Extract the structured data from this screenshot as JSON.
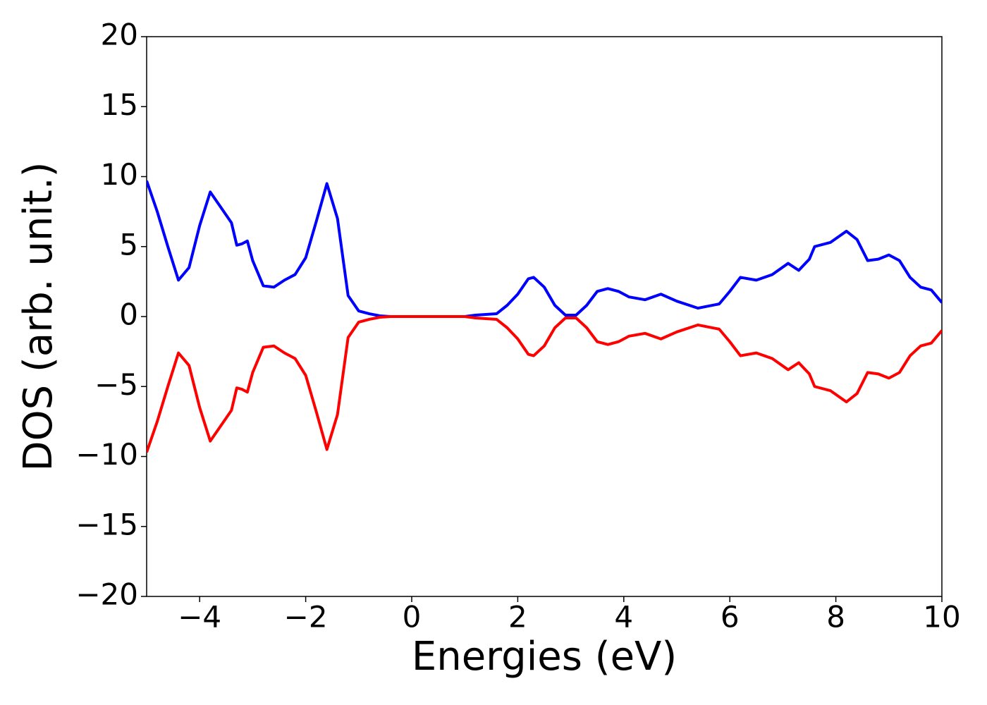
{
  "chart_data": {
    "type": "line",
    "x_label": "Energies (eV)",
    "y_label": "DOS (arb. unit.)",
    "x": [
      -5,
      -4.8,
      -4.6,
      -4.4,
      -4.2,
      -4.0,
      -3.8,
      -3.6,
      -3.4,
      -3.3,
      -3.2,
      -3.1,
      -3.0,
      -2.8,
      -2.6,
      -2.4,
      -2.2,
      -2.0,
      -1.8,
      -1.6,
      -1.4,
      -1.2,
      -1.0,
      -0.8,
      -0.6,
      -0.4,
      0,
      0.5,
      1.0,
      1.2,
      1.6,
      1.8,
      2.0,
      2.2,
      2.3,
      2.5,
      2.7,
      2.9,
      3.1,
      3.3,
      3.5,
      3.7,
      3.9,
      4.1,
      4.4,
      4.7,
      5.0,
      5.4,
      5.8,
      6.0,
      6.2,
      6.5,
      6.8,
      7.1,
      7.3,
      7.5,
      7.6,
      7.9,
      8.2,
      8.4,
      8.6,
      8.8,
      9.0,
      9.2,
      9.4,
      9.6,
      9.8,
      10.0
    ],
    "series": [
      {
        "color": "#0000ff",
        "values": [
          9.7,
          7.5,
          5.0,
          2.6,
          3.5,
          6.5,
          8.9,
          7.8,
          6.7,
          5.1,
          5.2,
          5.4,
          4.0,
          2.2,
          2.1,
          2.6,
          3.0,
          4.2,
          6.8,
          9.5,
          7.0,
          1.5,
          0.4,
          0.2,
          0.05,
          0,
          0,
          0,
          0,
          0.1,
          0.2,
          0.8,
          1.6,
          2.7,
          2.8,
          2.1,
          0.8,
          0.1,
          0.1,
          0.8,
          1.8,
          2.0,
          1.8,
          1.4,
          1.2,
          1.6,
          1.1,
          0.6,
          0.9,
          1.8,
          2.8,
          2.6,
          3.0,
          3.8,
          3.3,
          4.1,
          5.0,
          5.3,
          6.1,
          5.5,
          4.0,
          4.1,
          4.4,
          4.0,
          2.8,
          2.1,
          1.9,
          1.0
        ]
      },
      {
        "color": "#ff0000",
        "values": [
          -9.7,
          -7.5,
          -5.0,
          -2.6,
          -3.5,
          -6.5,
          -8.9,
          -7.8,
          -6.7,
          -5.1,
          -5.2,
          -5.4,
          -4.0,
          -2.2,
          -2.1,
          -2.6,
          -3.0,
          -4.2,
          -6.8,
          -9.5,
          -7.0,
          -1.5,
          -0.4,
          -0.2,
          -0.05,
          0,
          0,
          0,
          0,
          -0.1,
          -0.2,
          -0.8,
          -1.6,
          -2.7,
          -2.8,
          -2.1,
          -0.8,
          -0.1,
          -0.1,
          -0.8,
          -1.8,
          -2.0,
          -1.8,
          -1.4,
          -1.2,
          -1.6,
          -1.1,
          -0.6,
          -0.9,
          -1.8,
          -2.8,
          -2.6,
          -3.0,
          -3.8,
          -3.3,
          -4.1,
          -5.0,
          -5.3,
          -6.1,
          -5.5,
          -4.0,
          -4.1,
          -4.4,
          -4.0,
          -2.8,
          -2.1,
          -1.9,
          -1.0
        ]
      }
    ],
    "xlim": [
      -5,
      10
    ],
    "ylim": [
      -20,
      20
    ],
    "xticks": [
      {
        "value": -4,
        "label": "−4"
      },
      {
        "value": -2,
        "label": "−2"
      },
      0,
      2,
      4,
      6,
      8,
      10
    ],
    "yticks": [
      {
        "value": -20,
        "label": "−20"
      },
      {
        "value": -15,
        "label": "−15"
      },
      {
        "value": -10,
        "label": "−10"
      },
      {
        "value": -5,
        "label": "−5"
      },
      0,
      5,
      10,
      15,
      20
    ],
    "grid": false
  }
}
